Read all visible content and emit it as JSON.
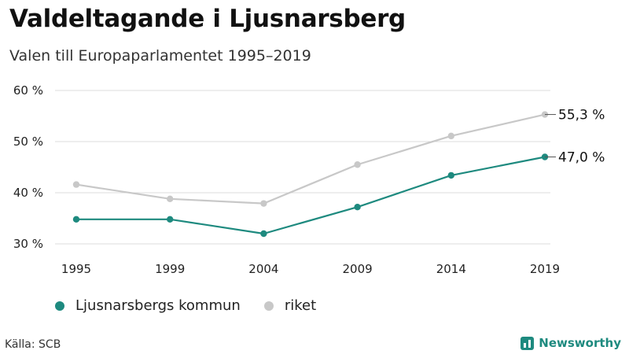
{
  "title": "Valdeltagande i Ljusnarsberg",
  "subtitle": "Valen till Europaparlamentet 1995–2019",
  "source": "Källa: SCB",
  "brand": "Newsworthy",
  "colors": {
    "kommun": "#1e8a7f",
    "riket": "#c8c8c8",
    "grid": "#dddddd",
    "brand": "#1e8a7f"
  },
  "legend": [
    {
      "label": "Ljusnarsbergs kommun",
      "color": "#1e8a7f"
    },
    {
      "label": "riket",
      "color": "#c8c8c8"
    }
  ],
  "chart_data": {
    "type": "line",
    "x": [
      "1995",
      "1999",
      "2004",
      "2009",
      "2014",
      "2019"
    ],
    "yticks": [
      30,
      40,
      50,
      60
    ],
    "ytick_labels": [
      "30 %",
      "40 %",
      "50 %",
      "60 %"
    ],
    "ylim": [
      30,
      60
    ],
    "grid": true,
    "legend_position": "bottom-left",
    "series": [
      {
        "name": "riket",
        "color": "#c8c8c8",
        "values": [
          41.6,
          38.8,
          37.9,
          45.5,
          51.1,
          55.3
        ],
        "end_label": "55,3 %"
      },
      {
        "name": "Ljusnarsbergs kommun",
        "color": "#1e8a7f",
        "values": [
          34.8,
          34.8,
          32.0,
          37.2,
          43.4,
          47.0
        ],
        "end_label": "47,0 %"
      }
    ]
  }
}
